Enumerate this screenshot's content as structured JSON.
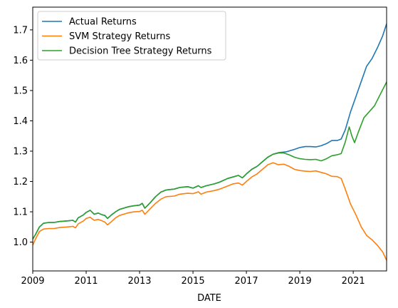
{
  "chart_data": {
    "type": "line",
    "title": "",
    "xlabel": "DATE",
    "ylabel": "",
    "xlim": [
      2009.0,
      2022.25
    ],
    "ylim": [
      0.905,
      1.775
    ],
    "grid": false,
    "legend_position": "top-left",
    "x_ticks": [
      {
        "value": 2009,
        "label": "2009"
      },
      {
        "value": 2011,
        "label": "2011"
      },
      {
        "value": 2013,
        "label": "2013"
      },
      {
        "value": 2015,
        "label": "2015"
      },
      {
        "value": 2017,
        "label": "2017"
      },
      {
        "value": 2019,
        "label": "2019"
      },
      {
        "value": 2021,
        "label": "2021"
      }
    ],
    "y_ticks": [
      {
        "value": 1.0,
        "label": "1.0"
      },
      {
        "value": 1.1,
        "label": "1.1"
      },
      {
        "value": 1.2,
        "label": "1.2"
      },
      {
        "value": 1.3,
        "label": "1.3"
      },
      {
        "value": 1.4,
        "label": "1.4"
      },
      {
        "value": 1.5,
        "label": "1.5"
      },
      {
        "value": 1.6,
        "label": "1.6"
      },
      {
        "value": 1.7,
        "label": "1.7"
      }
    ],
    "series": [
      {
        "name": "Actual Returns",
        "color": "#1f77b4",
        "points": [
          [
            2009.0,
            1.01
          ],
          [
            2009.1,
            1.025
          ],
          [
            2009.25,
            1.05
          ],
          [
            2009.4,
            1.062
          ],
          [
            2009.6,
            1.065
          ],
          [
            2009.8,
            1.065
          ],
          [
            2010.0,
            1.068
          ],
          [
            2010.3,
            1.07
          ],
          [
            2010.5,
            1.072
          ],
          [
            2010.6,
            1.066
          ],
          [
            2010.7,
            1.08
          ],
          [
            2010.9,
            1.09
          ],
          [
            2011.0,
            1.098
          ],
          [
            2011.15,
            1.105
          ],
          [
            2011.3,
            1.092
          ],
          [
            2011.45,
            1.096
          ],
          [
            2011.6,
            1.09
          ],
          [
            2011.7,
            1.088
          ],
          [
            2011.8,
            1.078
          ],
          [
            2011.95,
            1.09
          ],
          [
            2012.1,
            1.1
          ],
          [
            2012.25,
            1.108
          ],
          [
            2012.4,
            1.112
          ],
          [
            2012.6,
            1.117
          ],
          [
            2012.8,
            1.12
          ],
          [
            2013.0,
            1.122
          ],
          [
            2013.1,
            1.128
          ],
          [
            2013.2,
            1.112
          ],
          [
            2013.4,
            1.13
          ],
          [
            2013.6,
            1.15
          ],
          [
            2013.8,
            1.165
          ],
          [
            2014.0,
            1.172
          ],
          [
            2014.3,
            1.175
          ],
          [
            2014.5,
            1.18
          ],
          [
            2014.8,
            1.183
          ],
          [
            2015.0,
            1.178
          ],
          [
            2015.2,
            1.186
          ],
          [
            2015.3,
            1.18
          ],
          [
            2015.5,
            1.186
          ],
          [
            2015.8,
            1.192
          ],
          [
            2016.0,
            1.198
          ],
          [
            2016.3,
            1.21
          ],
          [
            2016.5,
            1.215
          ],
          [
            2016.7,
            1.22
          ],
          [
            2016.85,
            1.212
          ],
          [
            2017.0,
            1.225
          ],
          [
            2017.2,
            1.24
          ],
          [
            2017.4,
            1.25
          ],
          [
            2017.6,
            1.265
          ],
          [
            2017.8,
            1.28
          ],
          [
            2018.0,
            1.29
          ],
          [
            2018.2,
            1.295
          ],
          [
            2018.5,
            1.298
          ],
          [
            2018.8,
            1.306
          ],
          [
            2019.0,
            1.312
          ],
          [
            2019.2,
            1.315
          ],
          [
            2019.4,
            1.315
          ],
          [
            2019.6,
            1.314
          ],
          [
            2019.8,
            1.318
          ],
          [
            2020.0,
            1.325
          ],
          [
            2020.2,
            1.335
          ],
          [
            2020.4,
            1.335
          ],
          [
            2020.55,
            1.34
          ],
          [
            2020.7,
            1.37
          ],
          [
            2020.9,
            1.43
          ],
          [
            2021.1,
            1.48
          ],
          [
            2021.3,
            1.53
          ],
          [
            2021.5,
            1.58
          ],
          [
            2021.7,
            1.605
          ],
          [
            2021.9,
            1.64
          ],
          [
            2022.1,
            1.68
          ],
          [
            2022.25,
            1.72
          ]
        ]
      },
      {
        "name": "SVM Strategy Returns",
        "color": "#ff7f0e",
        "points": [
          [
            2009.0,
            0.99
          ],
          [
            2009.1,
            1.01
          ],
          [
            2009.25,
            1.035
          ],
          [
            2009.4,
            1.043
          ],
          [
            2009.6,
            1.045
          ],
          [
            2009.8,
            1.045
          ],
          [
            2010.0,
            1.048
          ],
          [
            2010.3,
            1.05
          ],
          [
            2010.5,
            1.052
          ],
          [
            2010.6,
            1.047
          ],
          [
            2010.7,
            1.06
          ],
          [
            2010.9,
            1.07
          ],
          [
            2011.0,
            1.078
          ],
          [
            2011.15,
            1.082
          ],
          [
            2011.3,
            1.072
          ],
          [
            2011.45,
            1.075
          ],
          [
            2011.6,
            1.07
          ],
          [
            2011.7,
            1.066
          ],
          [
            2011.8,
            1.057
          ],
          [
            2011.95,
            1.068
          ],
          [
            2012.1,
            1.08
          ],
          [
            2012.25,
            1.088
          ],
          [
            2012.4,
            1.092
          ],
          [
            2012.6,
            1.097
          ],
          [
            2012.8,
            1.1
          ],
          [
            2013.0,
            1.101
          ],
          [
            2013.1,
            1.105
          ],
          [
            2013.2,
            1.092
          ],
          [
            2013.4,
            1.11
          ],
          [
            2013.6,
            1.128
          ],
          [
            2013.8,
            1.142
          ],
          [
            2014.0,
            1.15
          ],
          [
            2014.3,
            1.152
          ],
          [
            2014.5,
            1.158
          ],
          [
            2014.8,
            1.161
          ],
          [
            2015.0,
            1.16
          ],
          [
            2015.2,
            1.166
          ],
          [
            2015.3,
            1.158
          ],
          [
            2015.5,
            1.165
          ],
          [
            2015.8,
            1.17
          ],
          [
            2016.0,
            1.175
          ],
          [
            2016.3,
            1.185
          ],
          [
            2016.5,
            1.192
          ],
          [
            2016.7,
            1.195
          ],
          [
            2016.85,
            1.188
          ],
          [
            2017.0,
            1.2
          ],
          [
            2017.2,
            1.215
          ],
          [
            2017.4,
            1.225
          ],
          [
            2017.6,
            1.24
          ],
          [
            2017.8,
            1.255
          ],
          [
            2018.0,
            1.262
          ],
          [
            2018.2,
            1.255
          ],
          [
            2018.4,
            1.257
          ],
          [
            2018.6,
            1.25
          ],
          [
            2018.8,
            1.24
          ],
          [
            2019.0,
            1.236
          ],
          [
            2019.2,
            1.234
          ],
          [
            2019.4,
            1.233
          ],
          [
            2019.6,
            1.235
          ],
          [
            2019.8,
            1.23
          ],
          [
            2020.0,
            1.225
          ],
          [
            2020.2,
            1.217
          ],
          [
            2020.4,
            1.216
          ],
          [
            2020.55,
            1.21
          ],
          [
            2020.7,
            1.175
          ],
          [
            2020.9,
            1.125
          ],
          [
            2021.1,
            1.09
          ],
          [
            2021.3,
            1.05
          ],
          [
            2021.5,
            1.022
          ],
          [
            2021.7,
            1.008
          ],
          [
            2021.9,
            0.99
          ],
          [
            2022.1,
            0.968
          ],
          [
            2022.25,
            0.94
          ]
        ]
      },
      {
        "name": "Decision Tree Strategy Returns",
        "color": "#2ca02c",
        "points": [
          [
            2009.0,
            1.01
          ],
          [
            2009.1,
            1.025
          ],
          [
            2009.25,
            1.05
          ],
          [
            2009.4,
            1.062
          ],
          [
            2009.6,
            1.065
          ],
          [
            2009.8,
            1.065
          ],
          [
            2010.0,
            1.068
          ],
          [
            2010.3,
            1.07
          ],
          [
            2010.5,
            1.072
          ],
          [
            2010.6,
            1.066
          ],
          [
            2010.7,
            1.08
          ],
          [
            2010.9,
            1.09
          ],
          [
            2011.0,
            1.098
          ],
          [
            2011.15,
            1.105
          ],
          [
            2011.3,
            1.092
          ],
          [
            2011.45,
            1.096
          ],
          [
            2011.6,
            1.09
          ],
          [
            2011.7,
            1.088
          ],
          [
            2011.8,
            1.078
          ],
          [
            2011.95,
            1.09
          ],
          [
            2012.1,
            1.1
          ],
          [
            2012.25,
            1.108
          ],
          [
            2012.4,
            1.112
          ],
          [
            2012.6,
            1.117
          ],
          [
            2012.8,
            1.12
          ],
          [
            2013.0,
            1.122
          ],
          [
            2013.1,
            1.128
          ],
          [
            2013.2,
            1.112
          ],
          [
            2013.4,
            1.13
          ],
          [
            2013.6,
            1.15
          ],
          [
            2013.8,
            1.165
          ],
          [
            2014.0,
            1.172
          ],
          [
            2014.3,
            1.175
          ],
          [
            2014.5,
            1.18
          ],
          [
            2014.8,
            1.183
          ],
          [
            2015.0,
            1.178
          ],
          [
            2015.2,
            1.186
          ],
          [
            2015.3,
            1.18
          ],
          [
            2015.5,
            1.186
          ],
          [
            2015.8,
            1.192
          ],
          [
            2016.0,
            1.198
          ],
          [
            2016.3,
            1.21
          ],
          [
            2016.5,
            1.215
          ],
          [
            2016.7,
            1.22
          ],
          [
            2016.85,
            1.212
          ],
          [
            2017.0,
            1.225
          ],
          [
            2017.2,
            1.24
          ],
          [
            2017.4,
            1.25
          ],
          [
            2017.6,
            1.265
          ],
          [
            2017.8,
            1.28
          ],
          [
            2018.0,
            1.29
          ],
          [
            2018.2,
            1.294
          ],
          [
            2018.4,
            1.294
          ],
          [
            2018.6,
            1.288
          ],
          [
            2018.8,
            1.28
          ],
          [
            2019.0,
            1.275
          ],
          [
            2019.2,
            1.273
          ],
          [
            2019.4,
            1.272
          ],
          [
            2019.6,
            1.273
          ],
          [
            2019.8,
            1.268
          ],
          [
            2020.0,
            1.275
          ],
          [
            2020.2,
            1.285
          ],
          [
            2020.4,
            1.288
          ],
          [
            2020.55,
            1.292
          ],
          [
            2020.7,
            1.33
          ],
          [
            2020.85,
            1.38
          ],
          [
            2020.95,
            1.35
          ],
          [
            2021.05,
            1.328
          ],
          [
            2021.2,
            1.365
          ],
          [
            2021.4,
            1.41
          ],
          [
            2021.6,
            1.43
          ],
          [
            2021.8,
            1.45
          ],
          [
            2022.0,
            1.485
          ],
          [
            2022.25,
            1.528
          ]
        ]
      }
    ]
  }
}
